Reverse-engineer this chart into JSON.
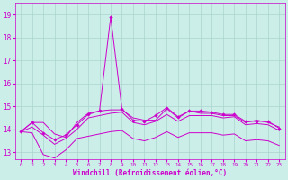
{
  "xlabel": "Windchill (Refroidissement éolien,°C)",
  "bg_color": "#cceee8",
  "grid_color": "#aad4ce",
  "line_color": "#cc00cc",
  "xmin": -0.5,
  "xmax": 23.5,
  "ymin": 12.7,
  "ymax": 19.5,
  "yticks": [
    13,
    14,
    15,
    16,
    17,
    18,
    19
  ],
  "xticks": [
    0,
    1,
    2,
    3,
    4,
    5,
    6,
    7,
    8,
    9,
    10,
    11,
    12,
    13,
    14,
    15,
    16,
    17,
    18,
    19,
    20,
    21,
    22,
    23
  ],
  "series": {
    "upper": [
      13.9,
      14.3,
      14.3,
      13.8,
      13.65,
      14.3,
      14.7,
      14.8,
      14.85,
      14.85,
      14.5,
      14.4,
      14.4,
      14.9,
      14.5,
      14.8,
      14.7,
      14.7,
      14.6,
      14.6,
      14.3,
      14.4,
      14.3,
      14.1
    ],
    "mid_upper": [
      13.9,
      14.3,
      13.85,
      13.55,
      13.75,
      14.2,
      14.65,
      14.8,
      18.9,
      14.9,
      14.4,
      14.35,
      14.6,
      14.95,
      14.55,
      14.8,
      14.8,
      14.75,
      14.65,
      14.65,
      14.35,
      14.35,
      14.35,
      14.05
    ],
    "mid_lower": [
      13.9,
      14.1,
      13.75,
      13.35,
      13.6,
      14.0,
      14.5,
      14.6,
      14.7,
      14.75,
      14.3,
      14.2,
      14.35,
      14.65,
      14.35,
      14.6,
      14.6,
      14.6,
      14.5,
      14.55,
      14.2,
      14.25,
      14.2,
      13.95
    ],
    "lower": [
      13.9,
      13.85,
      12.9,
      12.75,
      13.1,
      13.6,
      13.7,
      13.8,
      13.9,
      13.95,
      13.6,
      13.5,
      13.65,
      13.9,
      13.65,
      13.85,
      13.85,
      13.85,
      13.75,
      13.8,
      13.5,
      13.55,
      13.5,
      13.3
    ]
  },
  "xlabel_fontsize": 5.5,
  "ytick_fontsize": 5.5,
  "xtick_fontsize": 4.2
}
